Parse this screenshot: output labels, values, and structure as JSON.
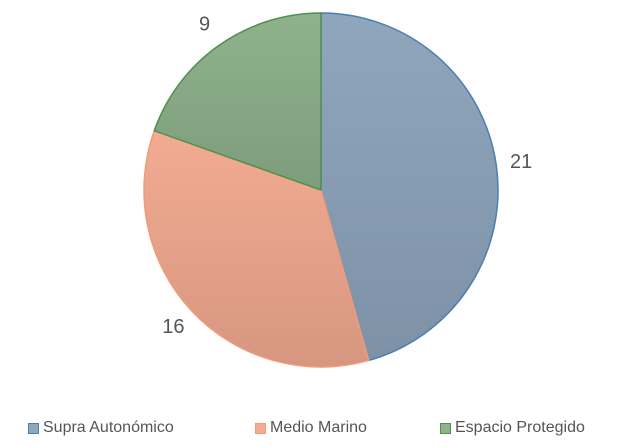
{
  "chart_data": {
    "type": "pie",
    "categories": [
      "Supra Autonómico",
      "Medio Marino",
      "Espacio Protegido"
    ],
    "values": [
      21,
      16,
      9
    ],
    "colors": [
      "#8fa6bd",
      "#f3ab92",
      "#8fb28c"
    ],
    "stroke_colors": [
      "#4a7fb0",
      "#f29a7a",
      "#4f9150"
    ],
    "legend_position": "bottom",
    "start_angle_deg": 0,
    "direction": "clockwise"
  }
}
